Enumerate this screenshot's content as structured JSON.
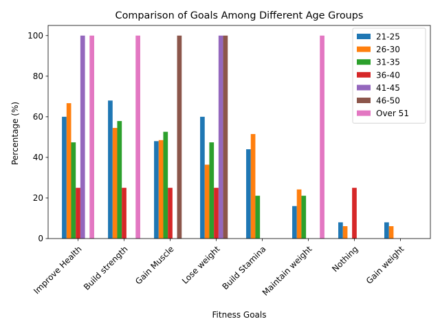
{
  "chart_data": {
    "type": "bar",
    "title": "Comparison of Goals Among Different Age Groups",
    "xlabel": "Fitness Goals",
    "ylabel": "Percentage (%)",
    "ylim": [
      0,
      105
    ],
    "yticks": [
      0,
      20,
      40,
      60,
      80,
      100
    ],
    "grid": false,
    "legend_position": "top-right",
    "categories": [
      "Improve Health",
      "Build strength",
      "Gain Muscle",
      "Lose weight",
      "Build Stamina",
      "Maintain weight",
      "Nothing",
      "Gain weight"
    ],
    "series": [
      {
        "name": "21-25",
        "color": "#1f77b4",
        "values": [
          60,
          68,
          48,
          60,
          44,
          16,
          8,
          8
        ]
      },
      {
        "name": "26-30",
        "color": "#ff7f0e",
        "values": [
          66.7,
          54.5,
          48.5,
          36.4,
          51.5,
          24.2,
          6.1,
          6.1
        ]
      },
      {
        "name": "31-35",
        "color": "#2ca02c",
        "values": [
          47.4,
          57.9,
          52.6,
          47.4,
          21.1,
          21.1,
          0,
          0
        ]
      },
      {
        "name": "36-40",
        "color": "#d62728",
        "values": [
          25,
          25,
          25,
          25,
          0,
          0,
          25,
          0
        ]
      },
      {
        "name": "41-45",
        "color": "#9467bd",
        "values": [
          100,
          0,
          0,
          100,
          0,
          0,
          0,
          0
        ]
      },
      {
        "name": "46-50",
        "color": "#8c564b",
        "values": [
          0,
          0,
          100,
          100,
          0,
          0,
          0,
          0
        ]
      },
      {
        "name": "Over 51",
        "color": "#e377c2",
        "values": [
          100,
          100,
          0,
          0,
          0,
          100,
          0,
          0
        ]
      }
    ]
  }
}
